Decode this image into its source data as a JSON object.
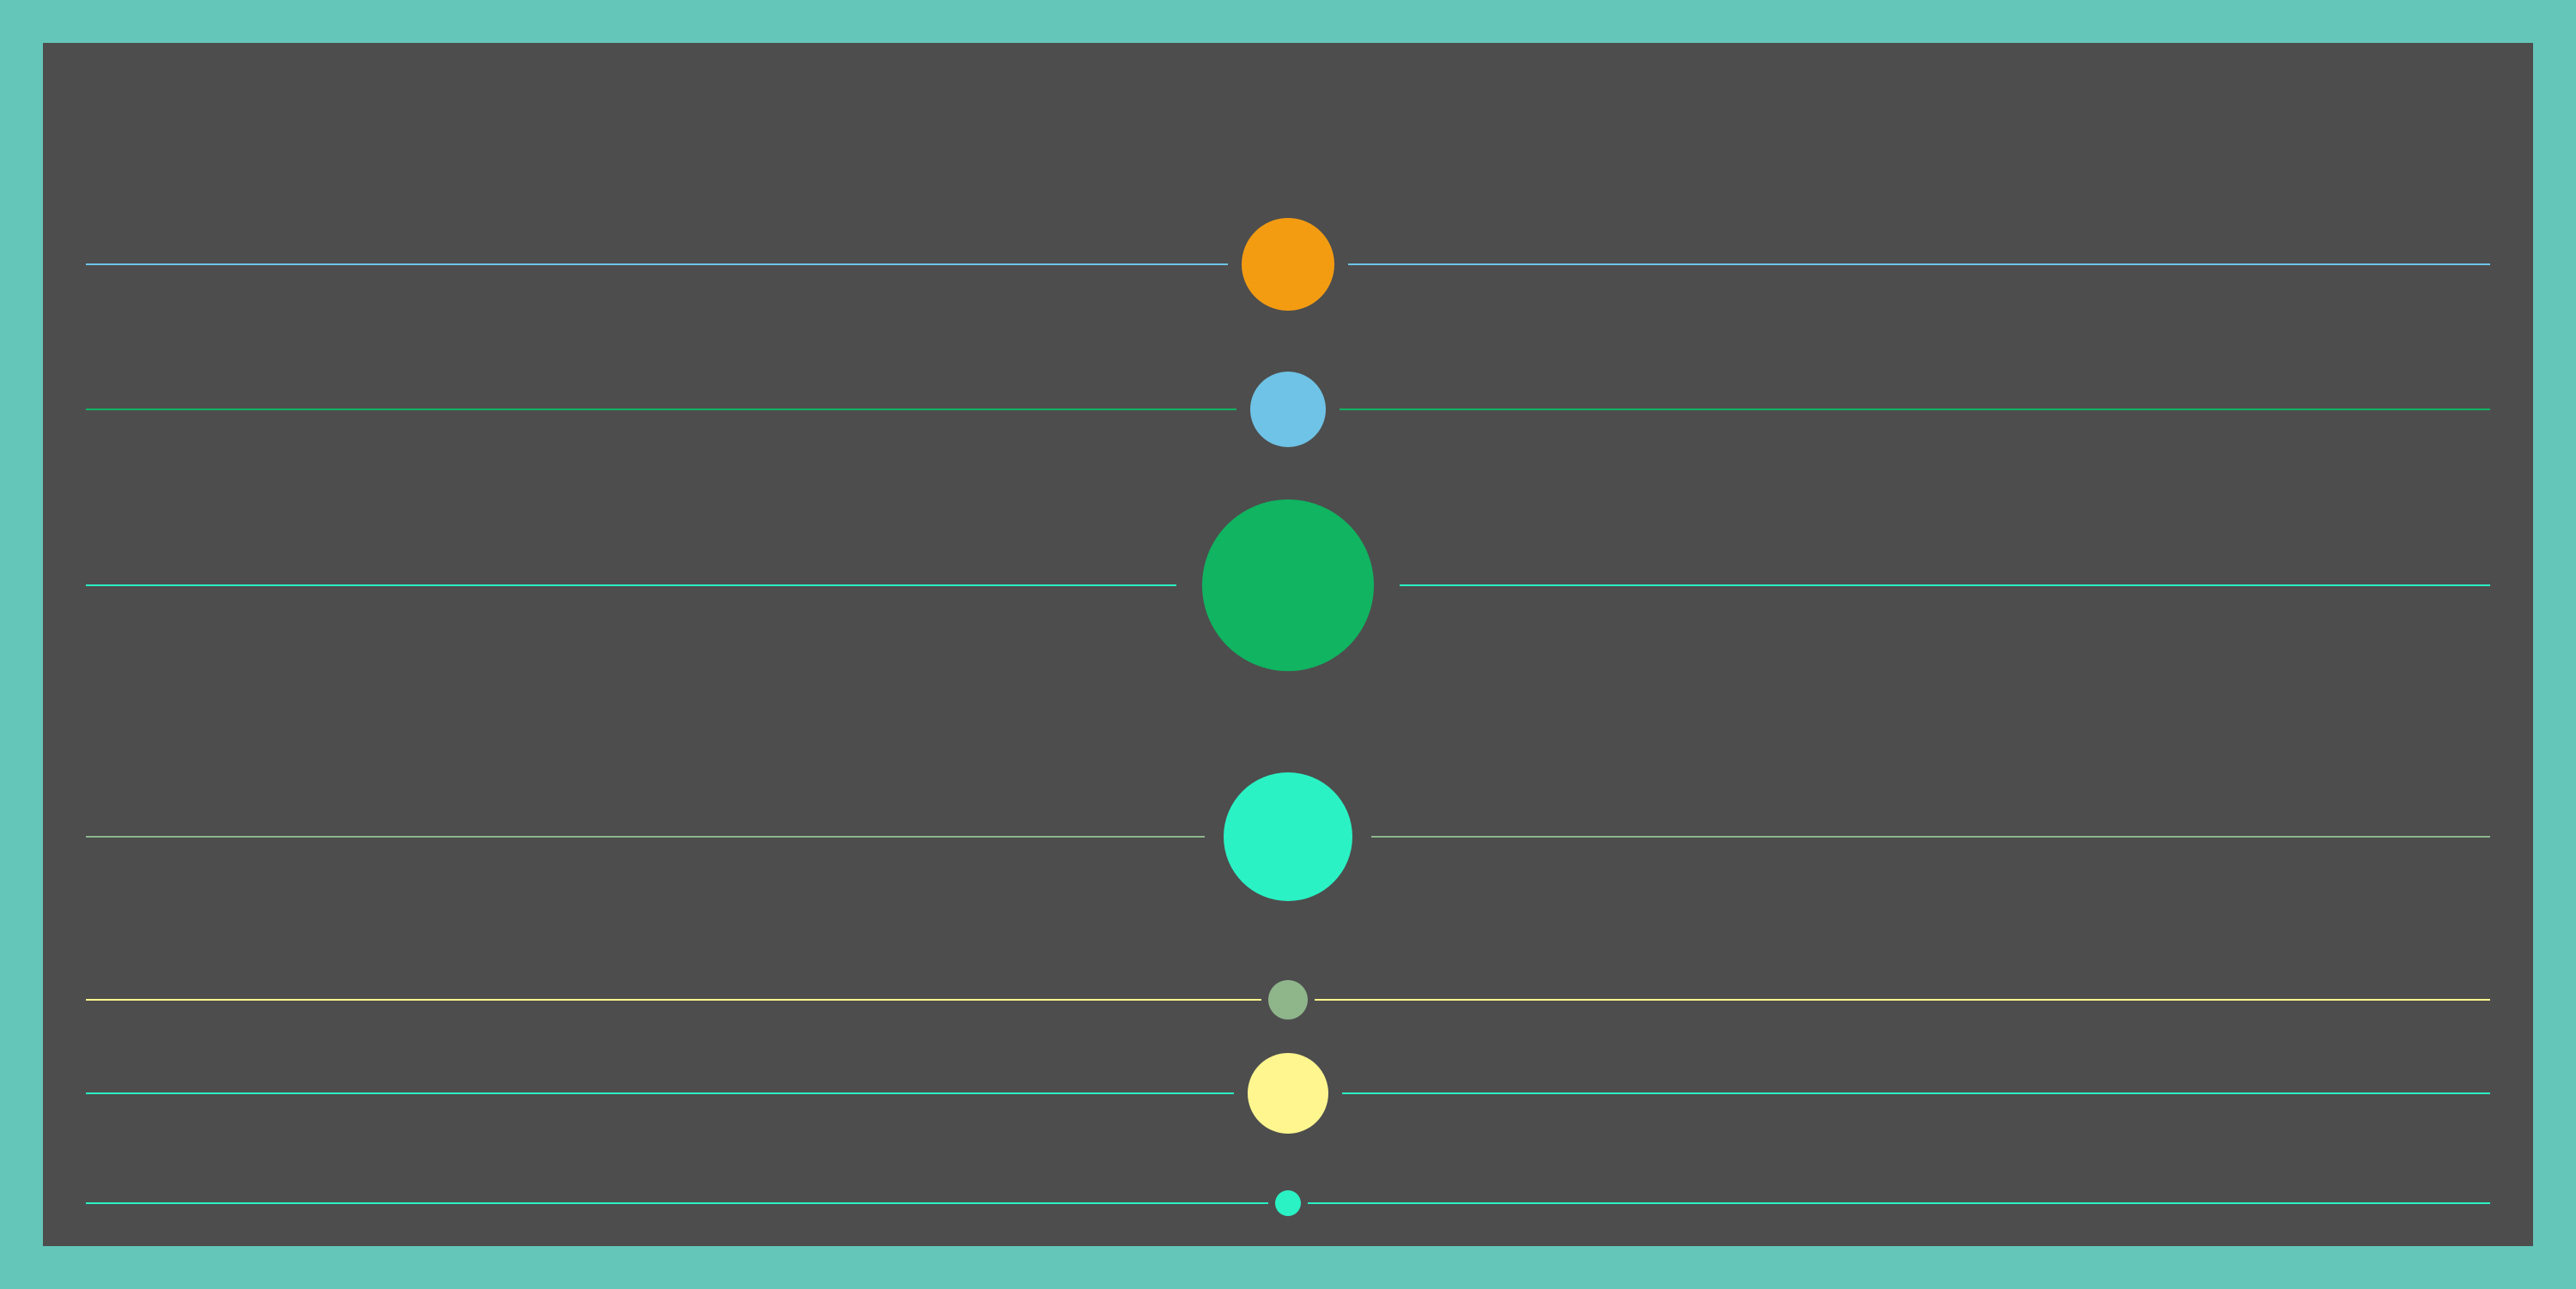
{
  "colors": {
    "frame": "#64c5b9",
    "panel": "#4d4d4d"
  },
  "rows": [
    {
      "dot_color": "#f39c12",
      "line_color": "#6ec3e6",
      "size": 5
    },
    {
      "dot_color": "#6ec3e6",
      "line_color": "#10b461",
      "size": 4
    },
    {
      "dot_color": "#10b461",
      "line_color": "#2af2c4",
      "size": 9
    },
    {
      "dot_color": "#2af2c4",
      "line_color": "#8fb58b",
      "size": 7
    },
    {
      "dot_color": "#8fb58b",
      "line_color": "#fff68f",
      "size": 2
    },
    {
      "dot_color": "#fff68f",
      "line_color": "#2af2c4",
      "size": 4
    },
    {
      "dot_color": "#2af2c4",
      "line_color": "#2af2c4",
      "size": 1
    }
  ]
}
